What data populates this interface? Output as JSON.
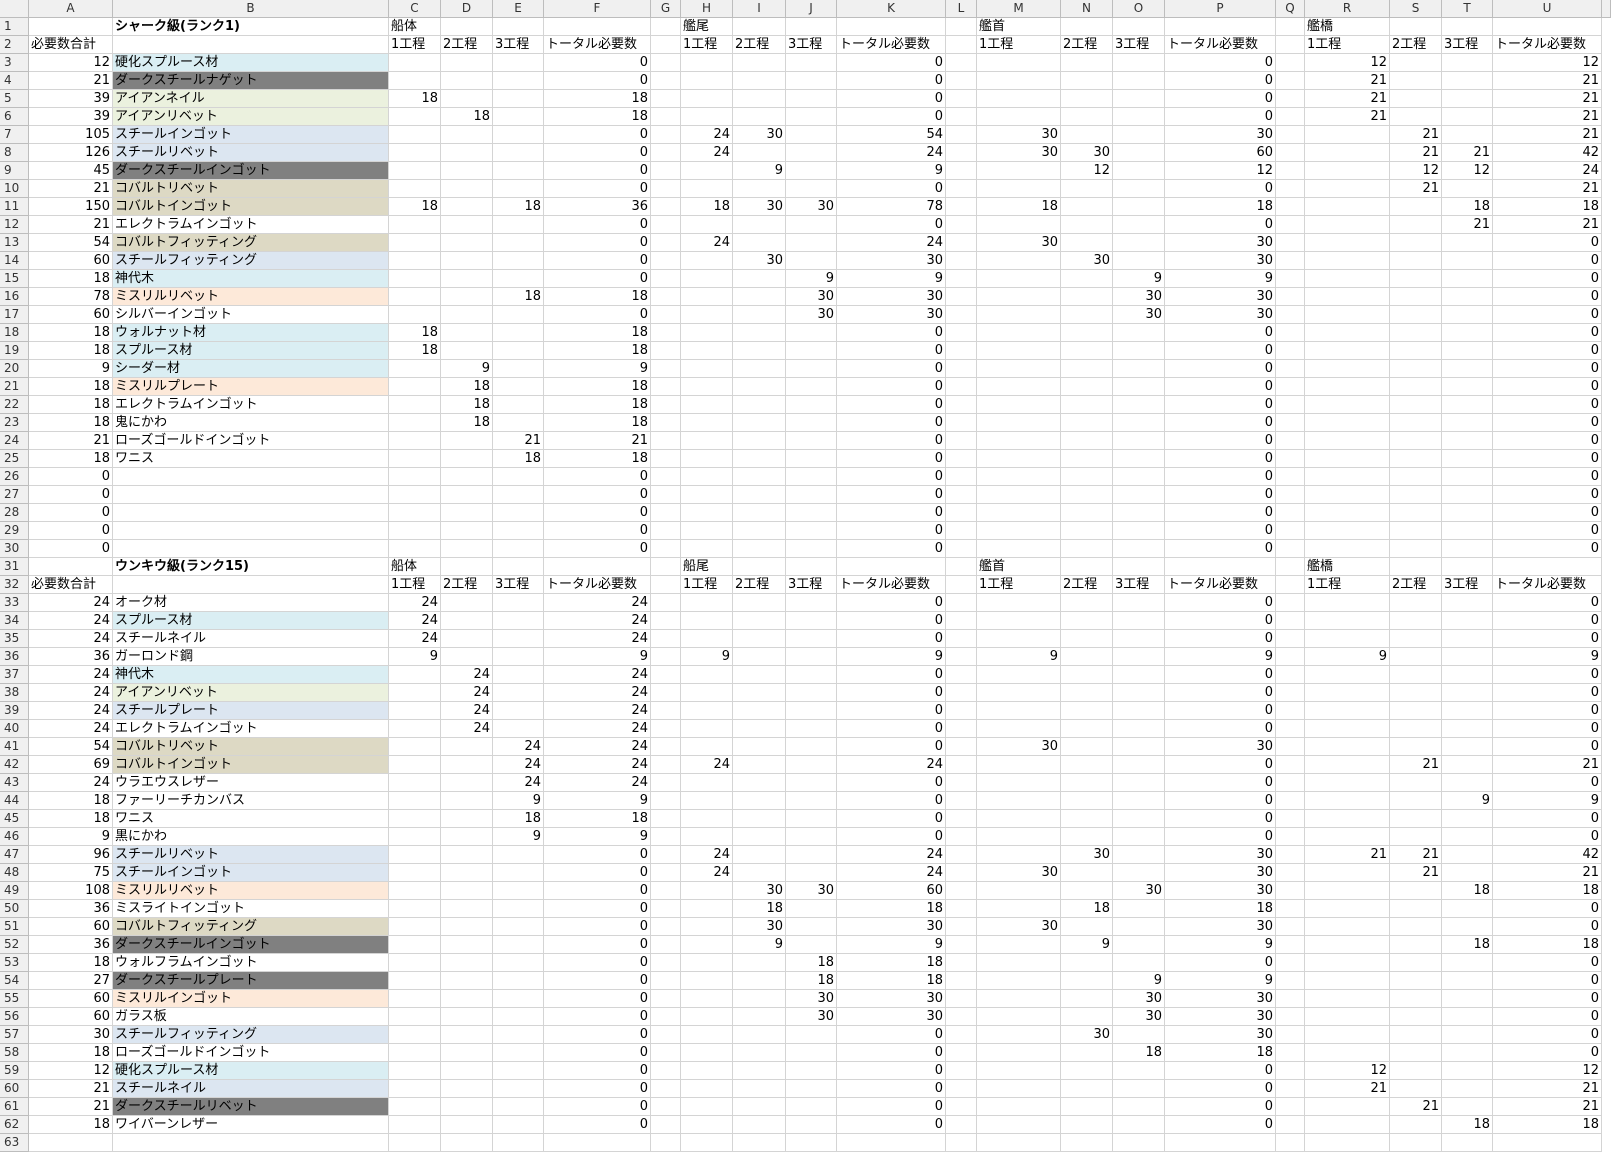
{
  "columns": [
    "A",
    "B",
    "C",
    "D",
    "E",
    "F",
    "G",
    "H",
    "I",
    "J",
    "K",
    "L",
    "M",
    "N",
    "O",
    "P",
    "Q",
    "R",
    "S",
    "T",
    "U"
  ],
  "fills": {
    "lightblue": "#DAEEF3",
    "dark": "#808080",
    "green": "#EBF1DE",
    "bluegray": "#DCE6F1",
    "tan": "#DDD9C4",
    "peach": "#FDE9D9"
  },
  "rows": [
    {
      "B": "シャーク級(ランク1)",
      "C": "船体",
      "H": "艦尾",
      "M": "艦首",
      "R": "艦橋"
    },
    {
      "A": "必要数合計",
      "C": "1工程",
      "D": "2工程",
      "E": "3工程",
      "F": "トータル必要数",
      "H": "1工程",
      "I": "2工程",
      "J": "3工程",
      "K": "トータル必要数",
      "M": "1工程",
      "N": "2工程",
      "O": "3工程",
      "P": "トータル必要数",
      "R": "1工程",
      "S": "2工程",
      "T": "3工程",
      "U": "トータル必要数"
    },
    {
      "A": "12",
      "B": "硬化スプルース材",
      "F": "0",
      "K": "0",
      "P": "0",
      "R": "12",
      "U": "12",
      "fill": "lightblue"
    },
    {
      "A": "21",
      "B": "ダークスチールナゲット",
      "F": "0",
      "K": "0",
      "P": "0",
      "R": "21",
      "U": "21",
      "fill": "dark"
    },
    {
      "A": "39",
      "B": "アイアンネイル",
      "C": "18",
      "F": "18",
      "K": "0",
      "P": "0",
      "R": "21",
      "U": "21",
      "fill": "green"
    },
    {
      "A": "39",
      "B": "アイアンリベット",
      "D": "18",
      "F": "18",
      "K": "0",
      "P": "0",
      "R": "21",
      "U": "21",
      "fill": "green"
    },
    {
      "A": "105",
      "B": "スチールインゴット",
      "F": "0",
      "H": "24",
      "I": "30",
      "K": "54",
      "M": "30",
      "P": "30",
      "S": "21",
      "U": "21",
      "fill": "bluegray"
    },
    {
      "A": "126",
      "B": "スチールリベット",
      "F": "0",
      "H": "24",
      "K": "24",
      "M": "30",
      "N": "30",
      "P": "60",
      "S": "21",
      "T": "21",
      "U": "42",
      "fill": "bluegray"
    },
    {
      "A": "45",
      "B": "ダークスチールインゴット",
      "F": "0",
      "I": "9",
      "K": "9",
      "N": "12",
      "P": "12",
      "S": "12",
      "T": "12",
      "U": "24",
      "fill": "dark"
    },
    {
      "A": "21",
      "B": "コバルトリベット",
      "F": "0",
      "K": "0",
      "P": "0",
      "S": "21",
      "U": "21",
      "fill": "tan"
    },
    {
      "A": "150",
      "B": "コバルトインゴット",
      "C": "18",
      "E": "18",
      "F": "36",
      "H": "18",
      "I": "30",
      "J": "30",
      "K": "78",
      "M": "18",
      "P": "18",
      "T": "18",
      "U": "18",
      "fill": "tan"
    },
    {
      "A": "21",
      "B": "エレクトラムインゴット",
      "F": "0",
      "K": "0",
      "P": "0",
      "T": "21",
      "U": "21"
    },
    {
      "A": "54",
      "B": "コバルトフィッティング",
      "F": "0",
      "H": "24",
      "K": "24",
      "M": "30",
      "P": "30",
      "U": "0",
      "fill": "tan"
    },
    {
      "A": "60",
      "B": "スチールフィッティング",
      "F": "0",
      "I": "30",
      "K": "30",
      "N": "30",
      "P": "30",
      "U": "0",
      "fill": "bluegray"
    },
    {
      "A": "18",
      "B": "神代木",
      "F": "0",
      "J": "9",
      "K": "9",
      "O": "9",
      "P": "9",
      "U": "0",
      "fill": "lightblue"
    },
    {
      "A": "78",
      "B": "ミスリルリベット",
      "E": "18",
      "F": "18",
      "J": "30",
      "K": "30",
      "O": "30",
      "P": "30",
      "U": "0",
      "fill": "peach"
    },
    {
      "A": "60",
      "B": "シルバーインゴット",
      "F": "0",
      "J": "30",
      "K": "30",
      "O": "30",
      "P": "30",
      "U": "0"
    },
    {
      "A": "18",
      "B": "ウォルナット材",
      "C": "18",
      "F": "18",
      "K": "0",
      "P": "0",
      "U": "0",
      "fill": "lightblue"
    },
    {
      "A": "18",
      "B": "スプルース材",
      "C": "18",
      "F": "18",
      "K": "0",
      "P": "0",
      "U": "0",
      "fill": "lightblue"
    },
    {
      "A": "9",
      "B": "シーダー材",
      "D": "9",
      "F": "9",
      "K": "0",
      "P": "0",
      "U": "0",
      "fill": "lightblue"
    },
    {
      "A": "18",
      "B": "ミスリルプレート",
      "D": "18",
      "F": "18",
      "K": "0",
      "P": "0",
      "U": "0",
      "fill": "peach"
    },
    {
      "A": "18",
      "B": "エレクトラムインゴット",
      "D": "18",
      "F": "18",
      "K": "0",
      "P": "0",
      "U": "0"
    },
    {
      "A": "18",
      "B": "鬼にかわ",
      "D": "18",
      "F": "18",
      "K": "0",
      "P": "0",
      "U": "0"
    },
    {
      "A": "21",
      "B": "ローズゴールドインゴット",
      "E": "21",
      "F": "21",
      "K": "0",
      "P": "0",
      "U": "0"
    },
    {
      "A": "18",
      "B": "ワニス",
      "E": "18",
      "F": "18",
      "K": "0",
      "P": "0",
      "U": "0"
    },
    {
      "A": "0",
      "F": "0",
      "K": "0",
      "P": "0",
      "U": "0"
    },
    {
      "A": "0",
      "F": "0",
      "K": "0",
      "P": "0",
      "U": "0"
    },
    {
      "A": "0",
      "F": "0",
      "K": "0",
      "P": "0",
      "U": "0"
    },
    {
      "A": "0",
      "F": "0",
      "K": "0",
      "P": "0",
      "U": "0"
    },
    {
      "A": "0",
      "F": "0",
      "K": "0",
      "P": "0",
      "U": "0"
    },
    {
      "B": "ウンキウ級(ランク15)",
      "C": "船体",
      "H": "船尾",
      "M": "艦首",
      "R": "艦橋"
    },
    {
      "A": "必要数合計",
      "C": "1工程",
      "D": "2工程",
      "E": "3工程",
      "F": "トータル必要数",
      "H": "1工程",
      "I": "2工程",
      "J": "3工程",
      "K": "トータル必要数",
      "M": "1工程",
      "N": "2工程",
      "O": "3工程",
      "P": "トータル必要数",
      "R": "1工程",
      "S": "2工程",
      "T": "3工程",
      "U": "トータル必要数"
    },
    {
      "A": "24",
      "B": "オーク材",
      "C": "24",
      "F": "24",
      "K": "0",
      "P": "0",
      "U": "0"
    },
    {
      "A": "24",
      "B": "スプルース材",
      "C": "24",
      "F": "24",
      "K": "0",
      "P": "0",
      "U": "0",
      "fill": "lightblue"
    },
    {
      "A": "24",
      "B": "スチールネイル",
      "C": "24",
      "F": "24",
      "K": "0",
      "P": "0",
      "U": "0"
    },
    {
      "A": "36",
      "B": "ガーロンド鋼",
      "C": "9",
      "F": "9",
      "H": "9",
      "K": "9",
      "M": "9",
      "P": "9",
      "R": "9",
      "U": "9"
    },
    {
      "A": "24",
      "B": "神代木",
      "D": "24",
      "F": "24",
      "K": "0",
      "P": "0",
      "U": "0",
      "fill": "lightblue"
    },
    {
      "A": "24",
      "B": "アイアンリベット",
      "D": "24",
      "F": "24",
      "K": "0",
      "P": "0",
      "U": "0",
      "fill": "green"
    },
    {
      "A": "24",
      "B": "スチールプレート",
      "D": "24",
      "F": "24",
      "K": "0",
      "P": "0",
      "U": "0",
      "fill": "bluegray"
    },
    {
      "A": "24",
      "B": "エレクトラムインゴット",
      "D": "24",
      "F": "24",
      "K": "0",
      "P": "0",
      "U": "0"
    },
    {
      "A": "54",
      "B": "コバルトリベット",
      "E": "24",
      "F": "24",
      "K": "0",
      "M": "30",
      "P": "30",
      "U": "0",
      "fill": "tan"
    },
    {
      "A": "69",
      "B": "コバルトインゴット",
      "E": "24",
      "F": "24",
      "H": "24",
      "K": "24",
      "P": "0",
      "S": "21",
      "U": "21",
      "fill": "tan"
    },
    {
      "A": "24",
      "B": "ウラエウスレザー",
      "E": "24",
      "F": "24",
      "K": "0",
      "P": "0",
      "U": "0"
    },
    {
      "A": "18",
      "B": "ファーリーチカンバス",
      "E": "9",
      "F": "9",
      "K": "0",
      "P": "0",
      "T": "9",
      "U": "9"
    },
    {
      "A": "18",
      "B": "ワニス",
      "E": "18",
      "F": "18",
      "K": "0",
      "P": "0",
      "U": "0"
    },
    {
      "A": "9",
      "B": "黒にかわ",
      "E": "9",
      "F": "9",
      "K": "0",
      "P": "0",
      "U": "0"
    },
    {
      "A": "96",
      "B": "スチールリベット",
      "F": "0",
      "H": "24",
      "K": "24",
      "N": "30",
      "P": "30",
      "R": "21",
      "S": "21",
      "U": "42",
      "fill": "bluegray"
    },
    {
      "A": "75",
      "B": "スチールインゴット",
      "F": "0",
      "H": "24",
      "K": "24",
      "M": "30",
      "P": "30",
      "S": "21",
      "U": "21",
      "fill": "bluegray"
    },
    {
      "A": "108",
      "B": "ミスリルリベット",
      "F": "0",
      "I": "30",
      "J": "30",
      "K": "60",
      "O": "30",
      "P": "30",
      "T": "18",
      "U": "18",
      "fill": "peach"
    },
    {
      "A": "36",
      "B": "ミスライトインゴット",
      "F": "0",
      "I": "18",
      "K": "18",
      "N": "18",
      "P": "18",
      "U": "0"
    },
    {
      "A": "60",
      "B": "コバルトフィッティング",
      "F": "0",
      "I": "30",
      "K": "30",
      "M": "30",
      "P": "30",
      "U": "0",
      "fill": "tan"
    },
    {
      "A": "36",
      "B": "ダークスチールインゴット",
      "F": "0",
      "I": "9",
      "K": "9",
      "N": "9",
      "P": "9",
      "T": "18",
      "U": "18",
      "fill": "dark"
    },
    {
      "A": "18",
      "B": "ウォルフラムインゴット",
      "F": "0",
      "J": "18",
      "K": "18",
      "P": "0",
      "U": "0"
    },
    {
      "A": "27",
      "B": "ダークスチールプレート",
      "F": "0",
      "J": "18",
      "K": "18",
      "O": "9",
      "P": "9",
      "U": "0",
      "fill": "dark"
    },
    {
      "A": "60",
      "B": "ミスリルインゴット",
      "F": "0",
      "J": "30",
      "K": "30",
      "O": "30",
      "P": "30",
      "U": "0",
      "fill": "peach"
    },
    {
      "A": "60",
      "B": "ガラス板",
      "F": "0",
      "J": "30",
      "K": "30",
      "O": "30",
      "P": "30",
      "U": "0"
    },
    {
      "A": "30",
      "B": "スチールフィッティング",
      "F": "0",
      "K": "0",
      "N": "30",
      "P": "30",
      "U": "0",
      "fill": "bluegray"
    },
    {
      "A": "18",
      "B": "ローズゴールドインゴット",
      "F": "0",
      "K": "0",
      "O": "18",
      "P": "18",
      "U": "0"
    },
    {
      "A": "12",
      "B": "硬化スプルース材",
      "F": "0",
      "K": "0",
      "P": "0",
      "R": "12",
      "U": "12",
      "fill": "lightblue"
    },
    {
      "A": "21",
      "B": "スチールネイル",
      "F": "0",
      "K": "0",
      "P": "0",
      "R": "21",
      "U": "21",
      "fill": "bluegray"
    },
    {
      "A": "21",
      "B": "ダークスチールリベット",
      "F": "0",
      "K": "0",
      "P": "0",
      "S": "21",
      "U": "21",
      "fill": "dark"
    },
    {
      "A": "18",
      "B": "ワイバーンレザー",
      "F": "0",
      "K": "0",
      "P": "0",
      "T": "18",
      "U": "18"
    }
  ]
}
